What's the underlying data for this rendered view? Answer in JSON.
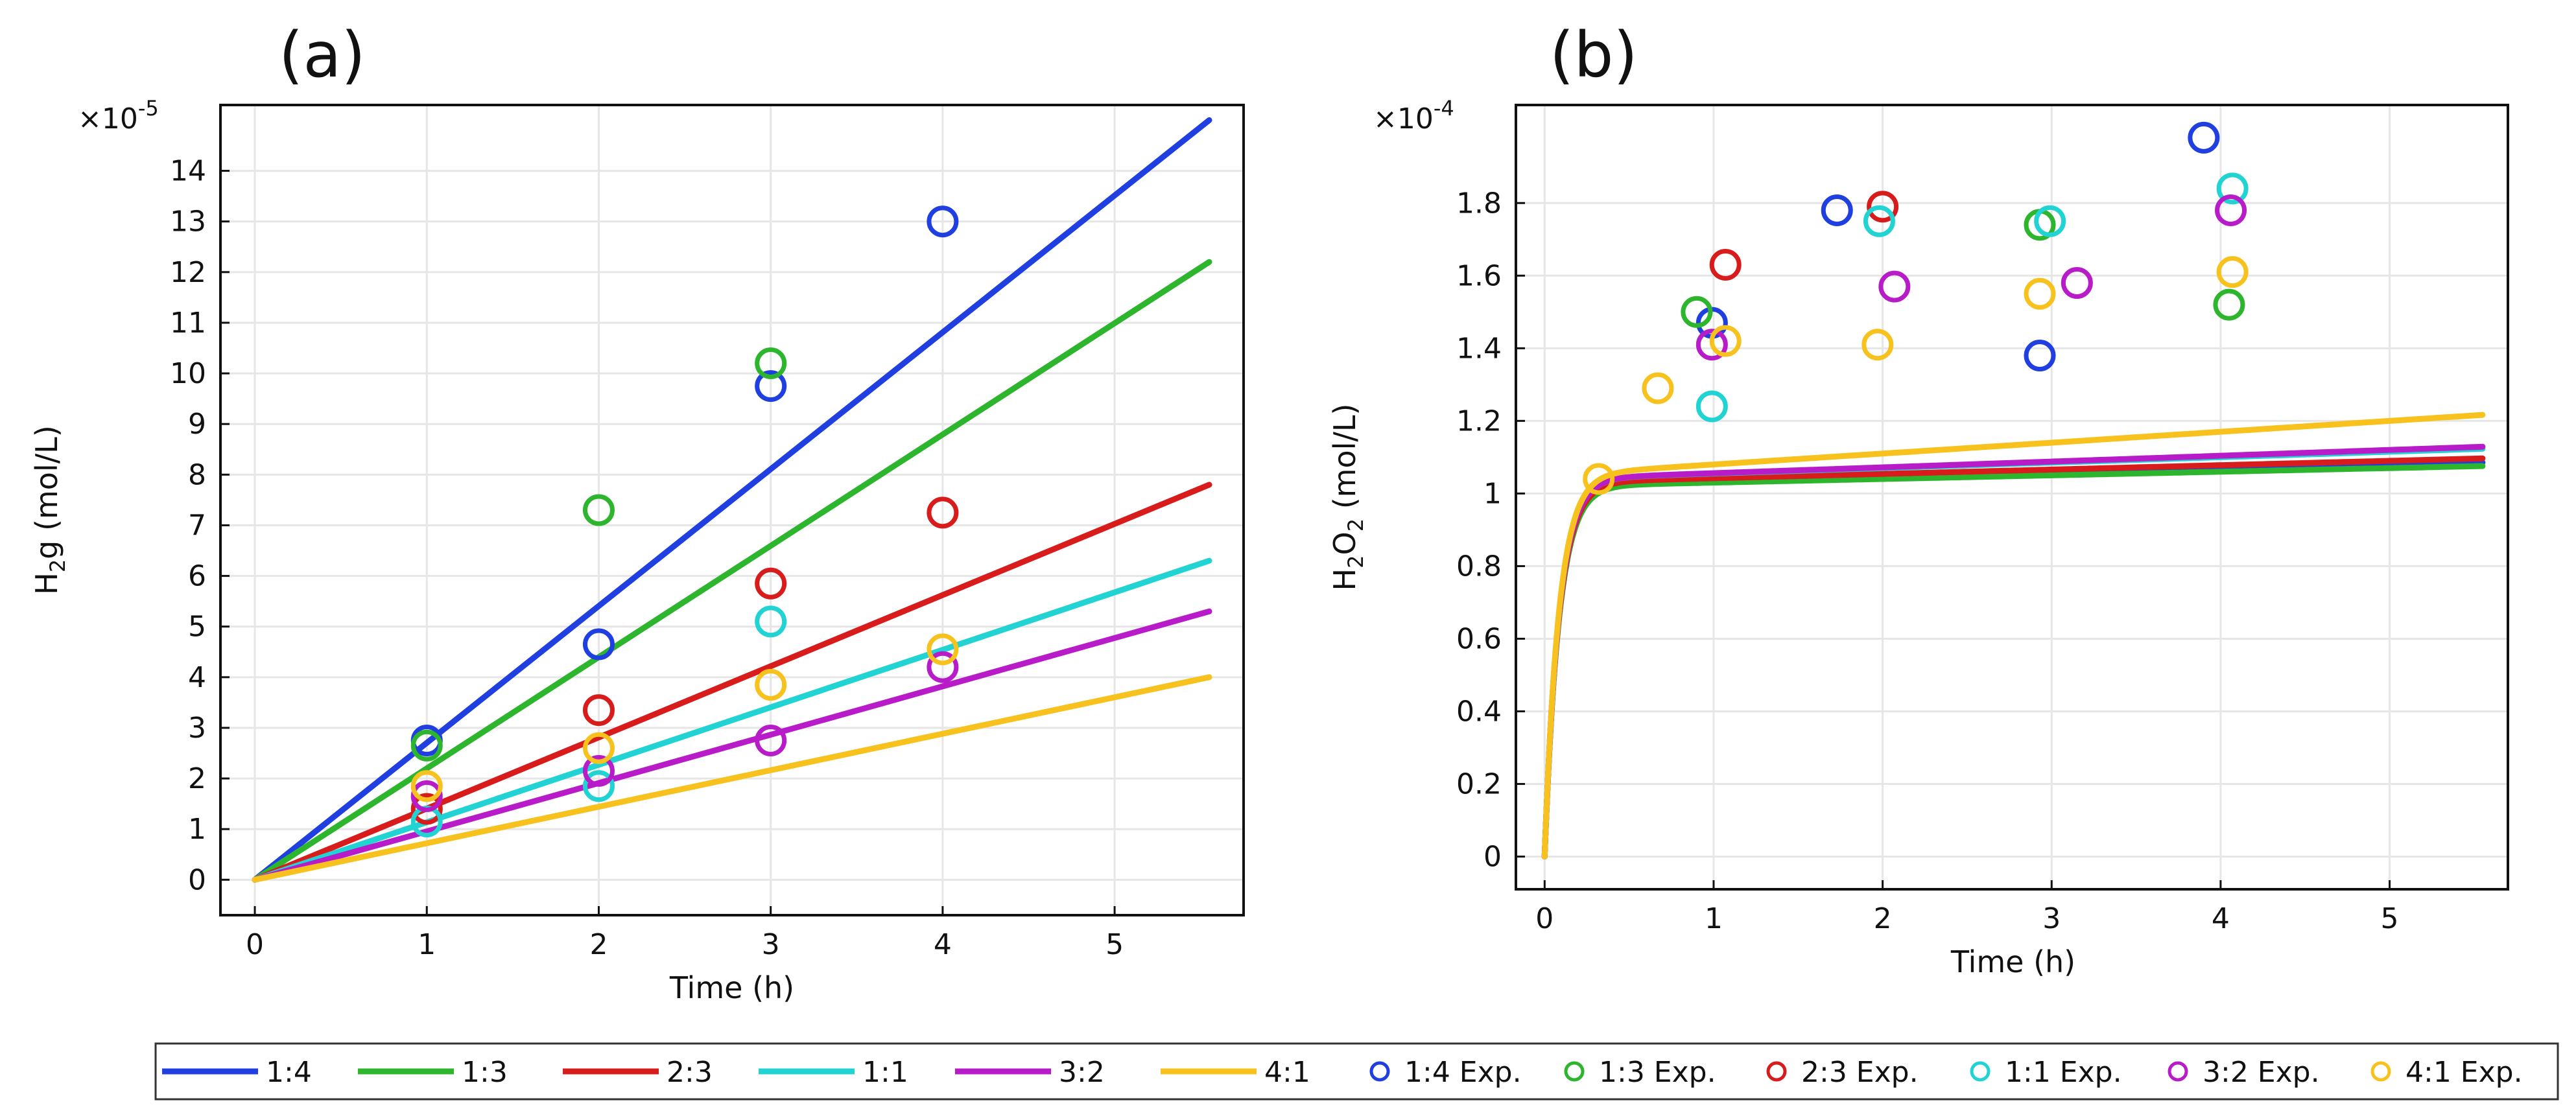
{
  "chart_data": [
    {
      "type": "line",
      "panel_label": "(a)",
      "title": "",
      "xlabel": "Time (h)",
      "ylabel_main": "H",
      "ylabel_sub": "2",
      "ylabel_rest": "g (mol/L)",
      "multiplier_prefix": "×10",
      "multiplier_exp": "-5",
      "xlim": [
        -0.2,
        5.75
      ],
      "ylim": [
        -0.7,
        15.3
      ],
      "xticks": [
        0,
        1,
        2,
        3,
        4,
        5
      ],
      "yticks": [
        0,
        1,
        2,
        3,
        4,
        5,
        6,
        7,
        8,
        9,
        10,
        11,
        12,
        13,
        14
      ],
      "grid": true,
      "model_series": [
        {
          "name": "1:4",
          "color": "#1f3fe0",
          "x": [
            0,
            5.55
          ],
          "y": [
            0,
            15.0
          ]
        },
        {
          "name": "1:3",
          "color": "#2db52d",
          "x": [
            0,
            5.55
          ],
          "y": [
            0,
            12.2
          ]
        },
        {
          "name": "2:3",
          "color": "#d81b1b",
          "x": [
            0,
            5.55
          ],
          "y": [
            0,
            7.8
          ]
        },
        {
          "name": "1:1",
          "color": "#22d3d3",
          "x": [
            0,
            5.55
          ],
          "y": [
            0,
            6.3
          ]
        },
        {
          "name": "3:2",
          "color": "#b81cc9",
          "x": [
            0,
            5.55
          ],
          "y": [
            0,
            5.3
          ]
        },
        {
          "name": "4:1",
          "color": "#f7c21e",
          "x": [
            0,
            5.55
          ],
          "y": [
            0,
            4.0
          ]
        }
      ],
      "experimental_series": [
        {
          "name": "1:4 Exp.",
          "color": "#1f3fe0",
          "x": [
            1,
            2,
            3,
            4
          ],
          "y": [
            2.75,
            4.65,
            9.75,
            13.0
          ]
        },
        {
          "name": "1:3 Exp.",
          "color": "#2db52d",
          "x": [
            1,
            2,
            3
          ],
          "y": [
            2.65,
            7.3,
            10.2
          ]
        },
        {
          "name": "2:3 Exp.",
          "color": "#d81b1b",
          "x": [
            1,
            2,
            3,
            4
          ],
          "y": [
            1.4,
            3.35,
            5.85,
            7.25
          ]
        },
        {
          "name": "1:1 Exp.",
          "color": "#22d3d3",
          "x": [
            1,
            2,
            3
          ],
          "y": [
            1.15,
            1.85,
            5.1
          ]
        },
        {
          "name": "3:2 Exp.",
          "color": "#b81cc9",
          "x": [
            1,
            2,
            3,
            4
          ],
          "y": [
            1.65,
            2.15,
            2.75,
            4.2
          ]
        },
        {
          "name": "4:1 Exp.",
          "color": "#f7c21e",
          "x": [
            1,
            2,
            3,
            4
          ],
          "y": [
            1.85,
            2.6,
            3.85,
            4.55
          ]
        }
      ]
    },
    {
      "type": "line",
      "panel_label": "(b)",
      "title": "",
      "xlabel": "Time (h)",
      "ylabel_main": "H",
      "ylabel_sub1": "2",
      "ylabel_mid": "O",
      "ylabel_sub2": "2",
      "ylabel_rest": " (mol/L)",
      "multiplier_prefix": "×10",
      "multiplier_exp": "-4",
      "xlim": [
        -0.17,
        5.7
      ],
      "ylim": [
        -0.09,
        2.07
      ],
      "xticks": [
        0,
        1,
        2,
        3,
        4,
        5
      ],
      "yticks": [
        "0",
        "0.2",
        "0.4",
        "0.6",
        "0.8",
        "1",
        "1.2",
        "1.4",
        "1.6",
        "1.8"
      ],
      "grid": true,
      "model_series": [
        {
          "name": "1:4",
          "color": "#1f3fe0",
          "params": {
            "a": 1.03,
            "b": 0.01,
            "k": 12
          }
        },
        {
          "name": "1:3",
          "color": "#2db52d",
          "params": {
            "a": 1.02,
            "b": 0.01,
            "k": 12
          }
        },
        {
          "name": "2:3",
          "color": "#d81b1b",
          "params": {
            "a": 1.03,
            "b": 0.012,
            "k": 12
          }
        },
        {
          "name": "1:1",
          "color": "#22d3d3",
          "params": {
            "a": 1.04,
            "b": 0.015,
            "k": 12
          }
        },
        {
          "name": "3:2",
          "color": "#b81cc9",
          "params": {
            "a": 1.04,
            "b": 0.016,
            "k": 12
          }
        },
        {
          "name": "4:1",
          "color": "#f7c21e",
          "params": {
            "a": 1.05,
            "b": 0.03,
            "k": 12
          }
        }
      ],
      "experimental_series": [
        {
          "name": "1:4 Exp.",
          "color": "#1f3fe0",
          "x": [
            0.99,
            1.73,
            2.93,
            3.9
          ],
          "y": [
            1.47,
            1.78,
            1.38,
            1.98
          ]
        },
        {
          "name": "1:3 Exp.",
          "color": "#2db52d",
          "x": [
            0.9,
            2.93,
            4.05
          ],
          "y": [
            1.5,
            1.74,
            1.52
          ]
        },
        {
          "name": "2:3 Exp.",
          "color": "#d81b1b",
          "x": [
            1.07,
            2.0
          ],
          "y": [
            1.63,
            1.79
          ]
        },
        {
          "name": "1:1 Exp.",
          "color": "#22d3d3",
          "x": [
            0.99,
            1.98,
            2.99,
            4.07
          ],
          "y": [
            1.24,
            1.75,
            1.75,
            1.84
          ]
        },
        {
          "name": "3:2 Exp.",
          "color": "#b81cc9",
          "x": [
            0.99,
            2.07,
            3.15,
            4.06
          ],
          "y": [
            1.41,
            1.57,
            1.58,
            1.78
          ]
        },
        {
          "name": "4:1 Exp.",
          "color": "#f7c21e",
          "x": [
            0.32,
            0.67,
            1.07,
            1.97,
            2.93,
            4.07
          ],
          "y": [
            1.04,
            1.29,
            1.42,
            1.41,
            1.55,
            1.61
          ]
        }
      ]
    }
  ],
  "legend": {
    "lines": [
      "1:4",
      "1:3",
      "2:3",
      "1:1",
      "3:2",
      "4:1"
    ],
    "markers": [
      "1:4 Exp.",
      "1:3 Exp.",
      "2:3 Exp.",
      "1:1 Exp.",
      "3:2 Exp.",
      "4:1 Exp."
    ],
    "colors": [
      "#1f3fe0",
      "#2db52d",
      "#d81b1b",
      "#22d3d3",
      "#b81cc9",
      "#f7c21e"
    ]
  }
}
